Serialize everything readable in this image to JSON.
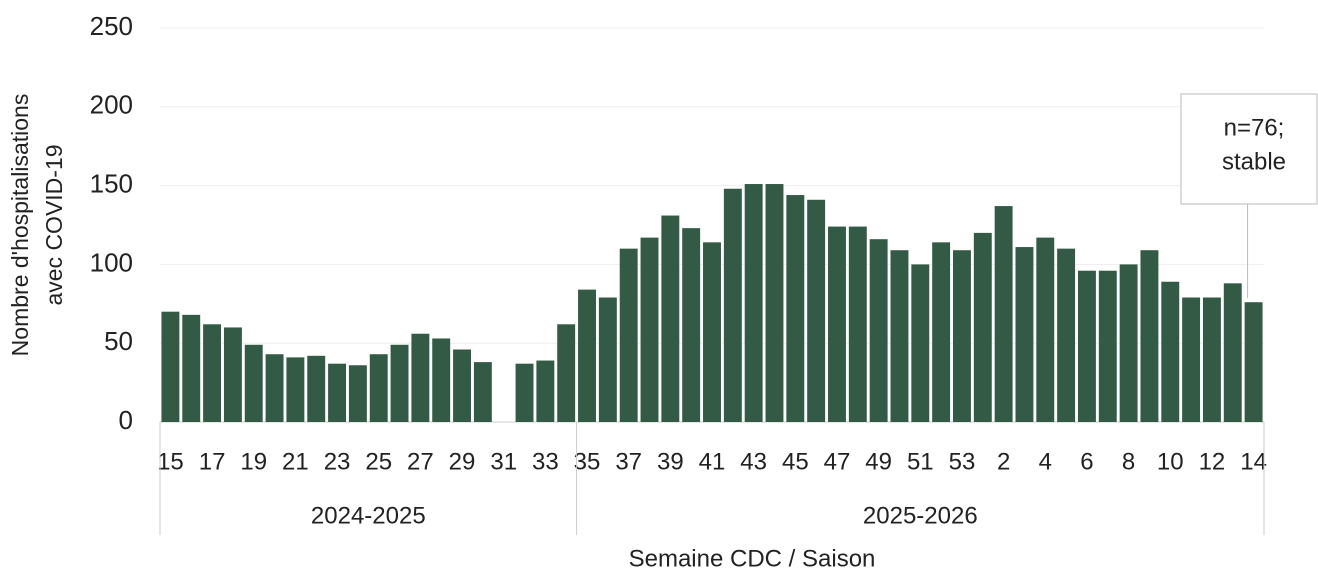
{
  "chart_data": {
    "type": "bar",
    "ylabel": [
      "Nombre d'hospitalisations",
      "avec COVID-19"
    ],
    "xlabel": "Semaine CDC / Saison",
    "categories": [
      "15",
      null,
      "17",
      null,
      "19",
      null,
      "21",
      null,
      "23",
      null,
      "25",
      null,
      "27",
      null,
      "29",
      null,
      "31",
      null,
      "33",
      null,
      "35",
      null,
      "37",
      null,
      "39",
      null,
      "41",
      null,
      "43",
      null,
      "45",
      null,
      "47",
      null,
      "49",
      null,
      "51",
      null,
      "53",
      null,
      "2",
      null,
      "4",
      null,
      "6",
      null,
      "8",
      null,
      "10",
      null,
      "12",
      null,
      "14"
    ],
    "values": [
      70,
      68,
      62,
      60,
      49,
      43,
      41,
      42,
      37,
      36,
      43,
      49,
      56,
      53,
      46,
      38,
      null,
      37,
      39,
      62,
      84,
      79,
      110,
      117,
      131,
      123,
      114,
      148,
      151,
      151,
      144,
      141,
      124,
      124,
      116,
      109,
      100,
      114,
      109,
      120,
      137,
      111,
      117,
      110,
      96,
      96,
      100,
      109,
      89,
      79,
      79,
      88,
      76
    ],
    "groups": [
      {
        "label": "2024-2025",
        "size": 20
      },
      {
        "label": "2025-2026",
        "size": 33
      }
    ],
    "color": "#325a45",
    "ylim": [
      0,
      250
    ],
    "yticks": [
      0,
      50,
      100,
      150,
      200,
      250
    ],
    "grid": true,
    "annotation": [
      "n=76;",
      "stable"
    ]
  }
}
